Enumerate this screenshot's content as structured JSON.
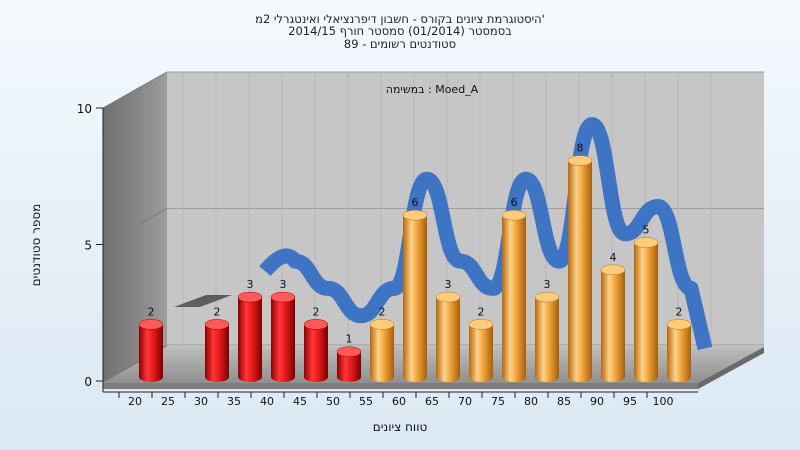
{
  "chart_data": {
    "type": "bar",
    "title_lines": [
      "היסטוגרמת ציונים בקורס - חשבון דיפרנציאלי ואינטגרלי 2מ'",
      "בסמסטר  (01/2014)  סמסטר חורף 2014/15",
      "סטודנטים רשומים - 89"
    ],
    "annotation": "במשימה : Moed_A",
    "xlabel": "טווח ציונים",
    "ylabel": "מספר סטודנטים",
    "x_ticks": [
      "20",
      "25",
      "30",
      "35",
      "40",
      "45",
      "50",
      "55",
      "60",
      "65",
      "70",
      "75",
      "80",
      "85",
      "90",
      "95",
      "100"
    ],
    "y_ticks": [
      "0",
      "5",
      "10"
    ],
    "ylim": [
      0,
      10
    ],
    "grid": true,
    "bars": [
      {
        "x": 20,
        "value": 2,
        "label": "2",
        "color": "#e01c1c"
      },
      {
        "x": 30,
        "value": 2,
        "label": "2",
        "color": "#e01c1c"
      },
      {
        "x": 35,
        "value": 3,
        "label": "3",
        "color": "#e01c1c"
      },
      {
        "x": 40,
        "value": 3,
        "label": "3",
        "color": "#e01c1c"
      },
      {
        "x": 45,
        "value": 2,
        "label": "2",
        "color": "#e01c1c"
      },
      {
        "x": 50,
        "value": 1,
        "label": "1",
        "color": "#e01c1c"
      },
      {
        "x": 55,
        "value": 2,
        "label": "2",
        "color": "#f0a22e"
      },
      {
        "x": 60,
        "value": 6,
        "label": "6",
        "color": "#f0a22e"
      },
      {
        "x": 65,
        "value": 3,
        "label": "3",
        "color": "#f0a22e"
      },
      {
        "x": 70,
        "value": 2,
        "label": "2",
        "color": "#f0a22e"
      },
      {
        "x": 75,
        "value": 6,
        "label": "6",
        "color": "#f0a22e"
      },
      {
        "x": 80,
        "value": 3,
        "label": "3",
        "color": "#f0a22e"
      },
      {
        "x": 85,
        "value": 8,
        "label": "8",
        "color": "#f0a22e"
      },
      {
        "x": 90,
        "value": 4,
        "label": "4",
        "color": "#f0a22e"
      },
      {
        "x": 95,
        "value": 5,
        "label": "5",
        "color": "#f0a22e"
      },
      {
        "x": 100,
        "value": 2,
        "label": "2",
        "color": "#f0a22e"
      }
    ],
    "colors": {
      "fail_bar": "#e01c1c",
      "pass_bar": "#f0a22e",
      "curve": "#3a72c4",
      "back_wall": "#c4c4c4",
      "side_wall": "#8e8e8e",
      "floor": "#a9a9a9"
    }
  }
}
